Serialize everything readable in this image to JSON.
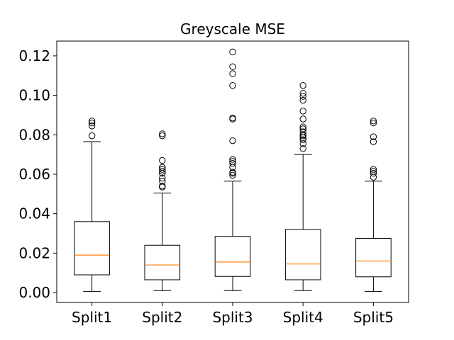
{
  "chart_data": {
    "type": "box",
    "title": "Greyscale MSE",
    "xlabel": "",
    "ylabel": "",
    "ylim": [
      -0.005,
      0.1275
    ],
    "yticks": [
      0.0,
      0.02,
      0.04,
      0.06,
      0.08,
      0.1,
      0.12
    ],
    "ytick_labels": [
      "0.00",
      "0.02",
      "0.04",
      "0.06",
      "0.08",
      "0.10",
      "0.12"
    ],
    "grid": false,
    "categories": [
      "Split1",
      "Split2",
      "Split3",
      "Split4",
      "Split5"
    ],
    "boxes": [
      {
        "whislo": 0.0006,
        "q1": 0.009,
        "med": 0.019,
        "q3": 0.036,
        "whishi": 0.0765,
        "fliers": [
          0.0795,
          0.0845,
          0.086,
          0.087
        ]
      },
      {
        "whislo": 0.001,
        "q1": 0.0065,
        "med": 0.014,
        "q3": 0.024,
        "whishi": 0.0505,
        "fliers": [
          0.0535,
          0.054,
          0.0565,
          0.058,
          0.0605,
          0.0615,
          0.0625,
          0.0635,
          0.067,
          0.0795,
          0.0805
        ]
      },
      {
        "whislo": 0.001,
        "q1": 0.0082,
        "med": 0.0155,
        "q3": 0.0285,
        "whishi": 0.0565,
        "fliers": [
          0.0595,
          0.0605,
          0.061,
          0.0635,
          0.0655,
          0.0665,
          0.0675,
          0.077,
          0.088,
          0.0885,
          0.105,
          0.111,
          0.1145,
          0.122
        ]
      },
      {
        "whislo": 0.001,
        "q1": 0.0065,
        "med": 0.0145,
        "q3": 0.032,
        "whishi": 0.07,
        "fliers": [
          0.073,
          0.0755,
          0.0775,
          0.0785,
          0.0795,
          0.08,
          0.0815,
          0.083,
          0.084,
          0.088,
          0.092,
          0.0975,
          0.0995,
          0.101,
          0.105
        ]
      },
      {
        "whislo": 0.0006,
        "q1": 0.008,
        "med": 0.016,
        "q3": 0.0275,
        "whishi": 0.0565,
        "fliers": [
          0.0585,
          0.0605,
          0.0615,
          0.0625,
          0.0765,
          0.079,
          0.086,
          0.087
        ]
      }
    ],
    "colors": {
      "box": "#000000",
      "median": "#ff7f0e",
      "flier_edge": "#000000",
      "background": "#ffffff"
    }
  }
}
